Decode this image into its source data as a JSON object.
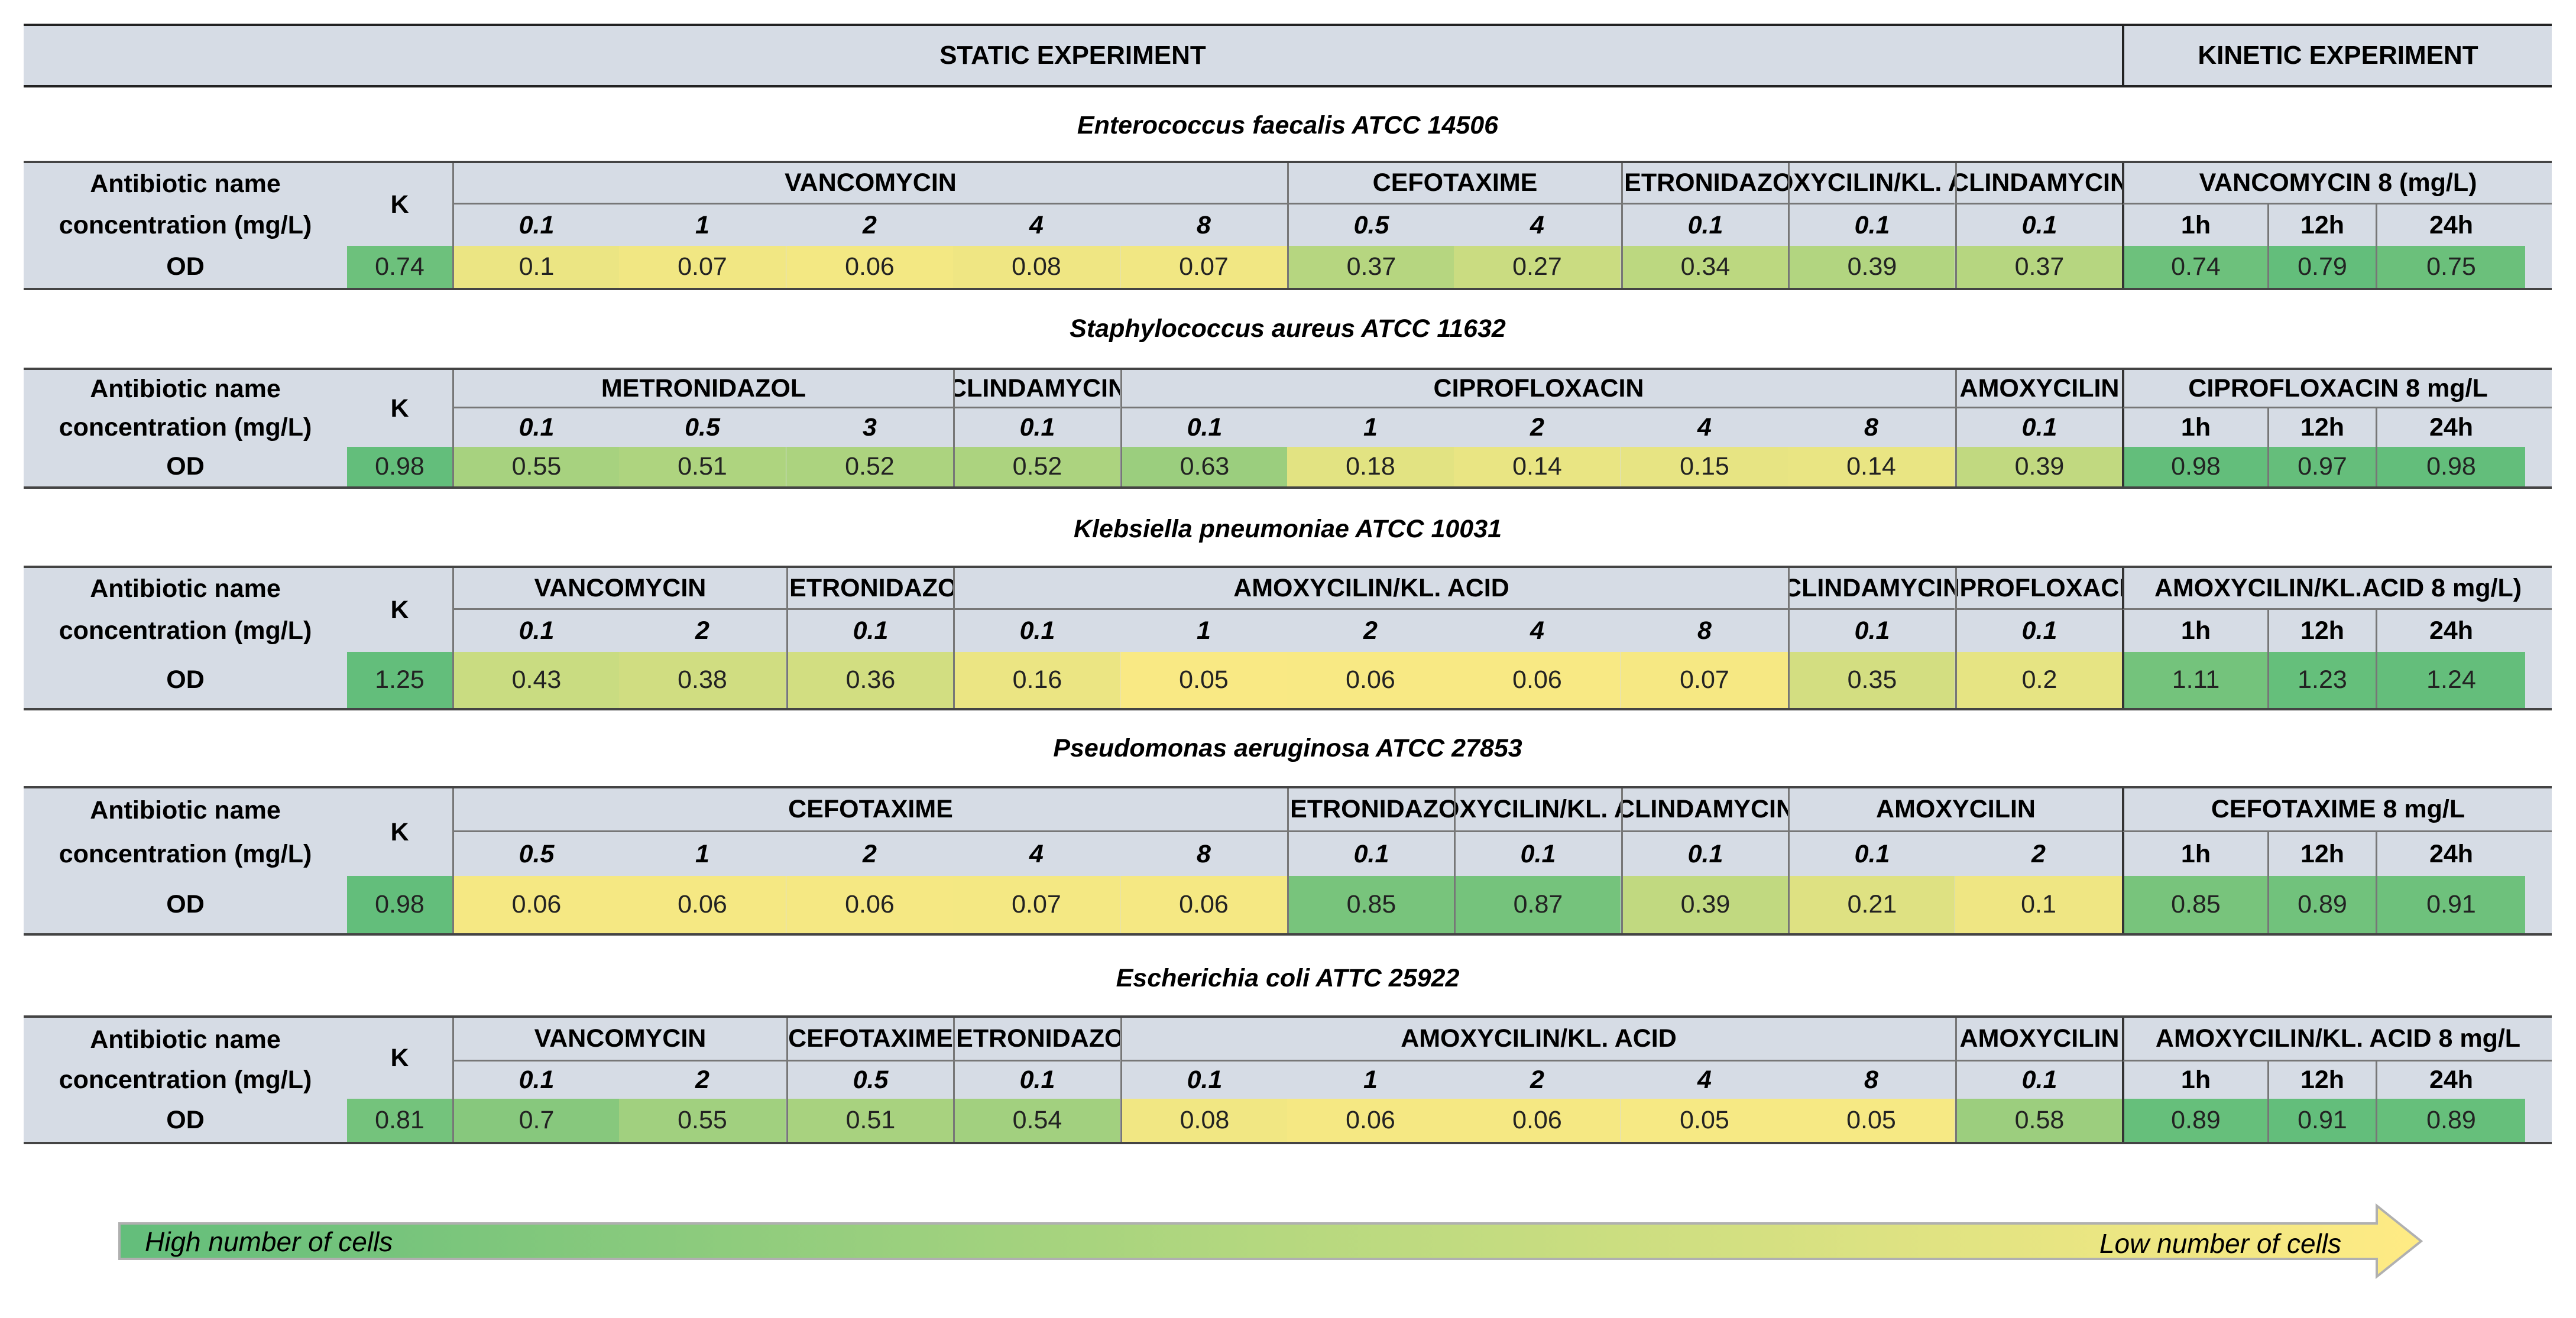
{
  "header": {
    "static": "STATIC EXPERIMENT",
    "kinetic": "KINETIC EXPERIMENT"
  },
  "row_labels": {
    "name": "Antibiotic name",
    "conc": "concentration (mg/L)",
    "od": "OD",
    "k": "K"
  },
  "colors": {
    "hi": "#63be7b",
    "lo": "#ffeb84"
  },
  "tables": [
    {
      "organism": "Enterococcus faecalis ATCC 14506",
      "control": "0.74",
      "groups": [
        {
          "name": "VANCOMYCIN",
          "concs": [
            "0.1",
            "1",
            "2",
            "4",
            "8"
          ],
          "values": [
            "0.1",
            "0.07",
            "0.06",
            "0.08",
            "0.07"
          ]
        },
        {
          "name": "CEFOTAXIME",
          "concs": [
            "0.5",
            "4"
          ],
          "values": [
            "0.37",
            "0.27"
          ]
        },
        {
          "name": "METRONIDAZOL",
          "concs": [
            "0.1"
          ],
          "values": [
            "0.34"
          ]
        },
        {
          "name": "AMOXYCILIN/KL. ACID",
          "concs": [
            "0.1"
          ],
          "values": [
            "0.39"
          ]
        },
        {
          "name": "CLINDAMYCIN",
          "concs": [
            "0.1"
          ],
          "values": [
            "0.37"
          ]
        }
      ],
      "kinetic": {
        "name": "VANCOMYCIN 8 (mg/L)",
        "times": [
          "1h",
          "12h",
          "24h"
        ],
        "values": [
          "0.74",
          "0.79",
          "0.75"
        ]
      }
    },
    {
      "organism": "Staphylococcus aureus ATCC 11632",
      "control": "0.98",
      "groups": [
        {
          "name": "METRONIDAZOL",
          "concs": [
            "0.1",
            "0.5",
            "3"
          ],
          "values": [
            "0.55",
            "0.51",
            "0.52"
          ]
        },
        {
          "name": "CLINDAMYCIN",
          "concs": [
            "0.1"
          ],
          "values": [
            "0.52"
          ]
        },
        {
          "name": "CIPROFLOXACIN",
          "concs": [
            "0.1",
            "1",
            "2",
            "4",
            "8"
          ],
          "values": [
            "0.63",
            "0.18",
            "0.14",
            "0.15",
            "0.14"
          ]
        },
        {
          "name": "AMOXYCILIN",
          "concs": [
            "0.1"
          ],
          "values": [
            "0.39"
          ]
        }
      ],
      "kinetic": {
        "name": "CIPROFLOXACIN  8 mg/L",
        "times": [
          "1h",
          "12h",
          "24h"
        ],
        "values": [
          "0.98",
          "0.97",
          "0.98"
        ]
      }
    },
    {
      "organism": "Klebsiella pneumoniae ATCC 10031",
      "control": "1.25",
      "groups": [
        {
          "name": "VANCOMYCIN",
          "concs": [
            "0.1",
            "2"
          ],
          "values": [
            "0.43",
            "0.38"
          ]
        },
        {
          "name": "METRONIDAZOL",
          "concs": [
            "0.1"
          ],
          "values": [
            "0.36"
          ]
        },
        {
          "name": "AMOXYCILIN/KL. ACID",
          "concs": [
            "0.1",
            "1",
            "2",
            "4",
            "8"
          ],
          "values": [
            "0.16",
            "0.05",
            "0.06",
            "0.06",
            "0.07"
          ]
        },
        {
          "name": "CLINDAMYCIN",
          "concs": [
            "0.1"
          ],
          "values": [
            "0.35"
          ]
        },
        {
          "name": "CIPROFLOXACIN",
          "concs": [
            "0.1"
          ],
          "values": [
            "0.2"
          ]
        }
      ],
      "kinetic": {
        "name": "AMOXYCILIN/KL.ACID 8 mg/L)",
        "times": [
          "1h",
          "12h",
          "24h"
        ],
        "values": [
          "1.11",
          "1.23",
          "1.24"
        ]
      }
    },
    {
      "organism": "Pseudomonas aeruginosa ATCC 27853",
      "control": "0.98",
      "groups": [
        {
          "name": "CEFOTAXIME",
          "concs": [
            "0.5",
            "1",
            "2",
            "4",
            "8"
          ],
          "values": [
            "0.06",
            "0.06",
            "0.06",
            "0.07",
            "0.06"
          ]
        },
        {
          "name": "METRONIDAZOL",
          "concs": [
            "0.1"
          ],
          "values": [
            "0.85"
          ]
        },
        {
          "name": "AMOXYCILIN/KL. ACID",
          "concs": [
            "0.1"
          ],
          "values": [
            "0.87"
          ]
        },
        {
          "name": "CLINDAMYCIN",
          "concs": [
            "0.1"
          ],
          "values": [
            "0.39"
          ]
        },
        {
          "name": "AMOXYCILIN",
          "concs": [
            "0.1",
            "2"
          ],
          "values": [
            "0.21",
            "0.1"
          ]
        }
      ],
      "kinetic": {
        "name": "CEFOTAXIME 8 mg/L",
        "times": [
          "1h",
          "12h",
          "24h"
        ],
        "values": [
          "0.85",
          "0.89",
          "0.91"
        ]
      }
    },
    {
      "organism": "Escherichia coli ATTC 25922",
      "control": "0.81",
      "groups": [
        {
          "name": "VANCOMYCIN",
          "concs": [
            "0.1",
            "2"
          ],
          "values": [
            "0.7",
            "0.55"
          ]
        },
        {
          "name": "CEFOTAXIME",
          "concs": [
            "0.5"
          ],
          "values": [
            "0.51"
          ]
        },
        {
          "name": "METRONIDAZOL",
          "concs": [
            "0.1"
          ],
          "values": [
            "0.54"
          ]
        },
        {
          "name": "AMOXYCILIN/KL. ACID",
          "concs": [
            "0.1",
            "1",
            "2",
            "4",
            "8"
          ],
          "values": [
            "0.08",
            "0.06",
            "0.06",
            "0.05",
            "0.05"
          ]
        },
        {
          "name": "AMOXYCILIN",
          "concs": [
            "0.1"
          ],
          "values": [
            "0.58"
          ]
        }
      ],
      "kinetic": {
        "name": "AMOXYCILIN/KL. ACID 8 mg/L",
        "times": [
          "1h",
          "12h",
          "24h"
        ],
        "values": [
          "0.89",
          "0.91",
          "0.89"
        ]
      }
    }
  ],
  "legend": {
    "high": "High number of cells",
    "low": "Low number of cells"
  }
}
